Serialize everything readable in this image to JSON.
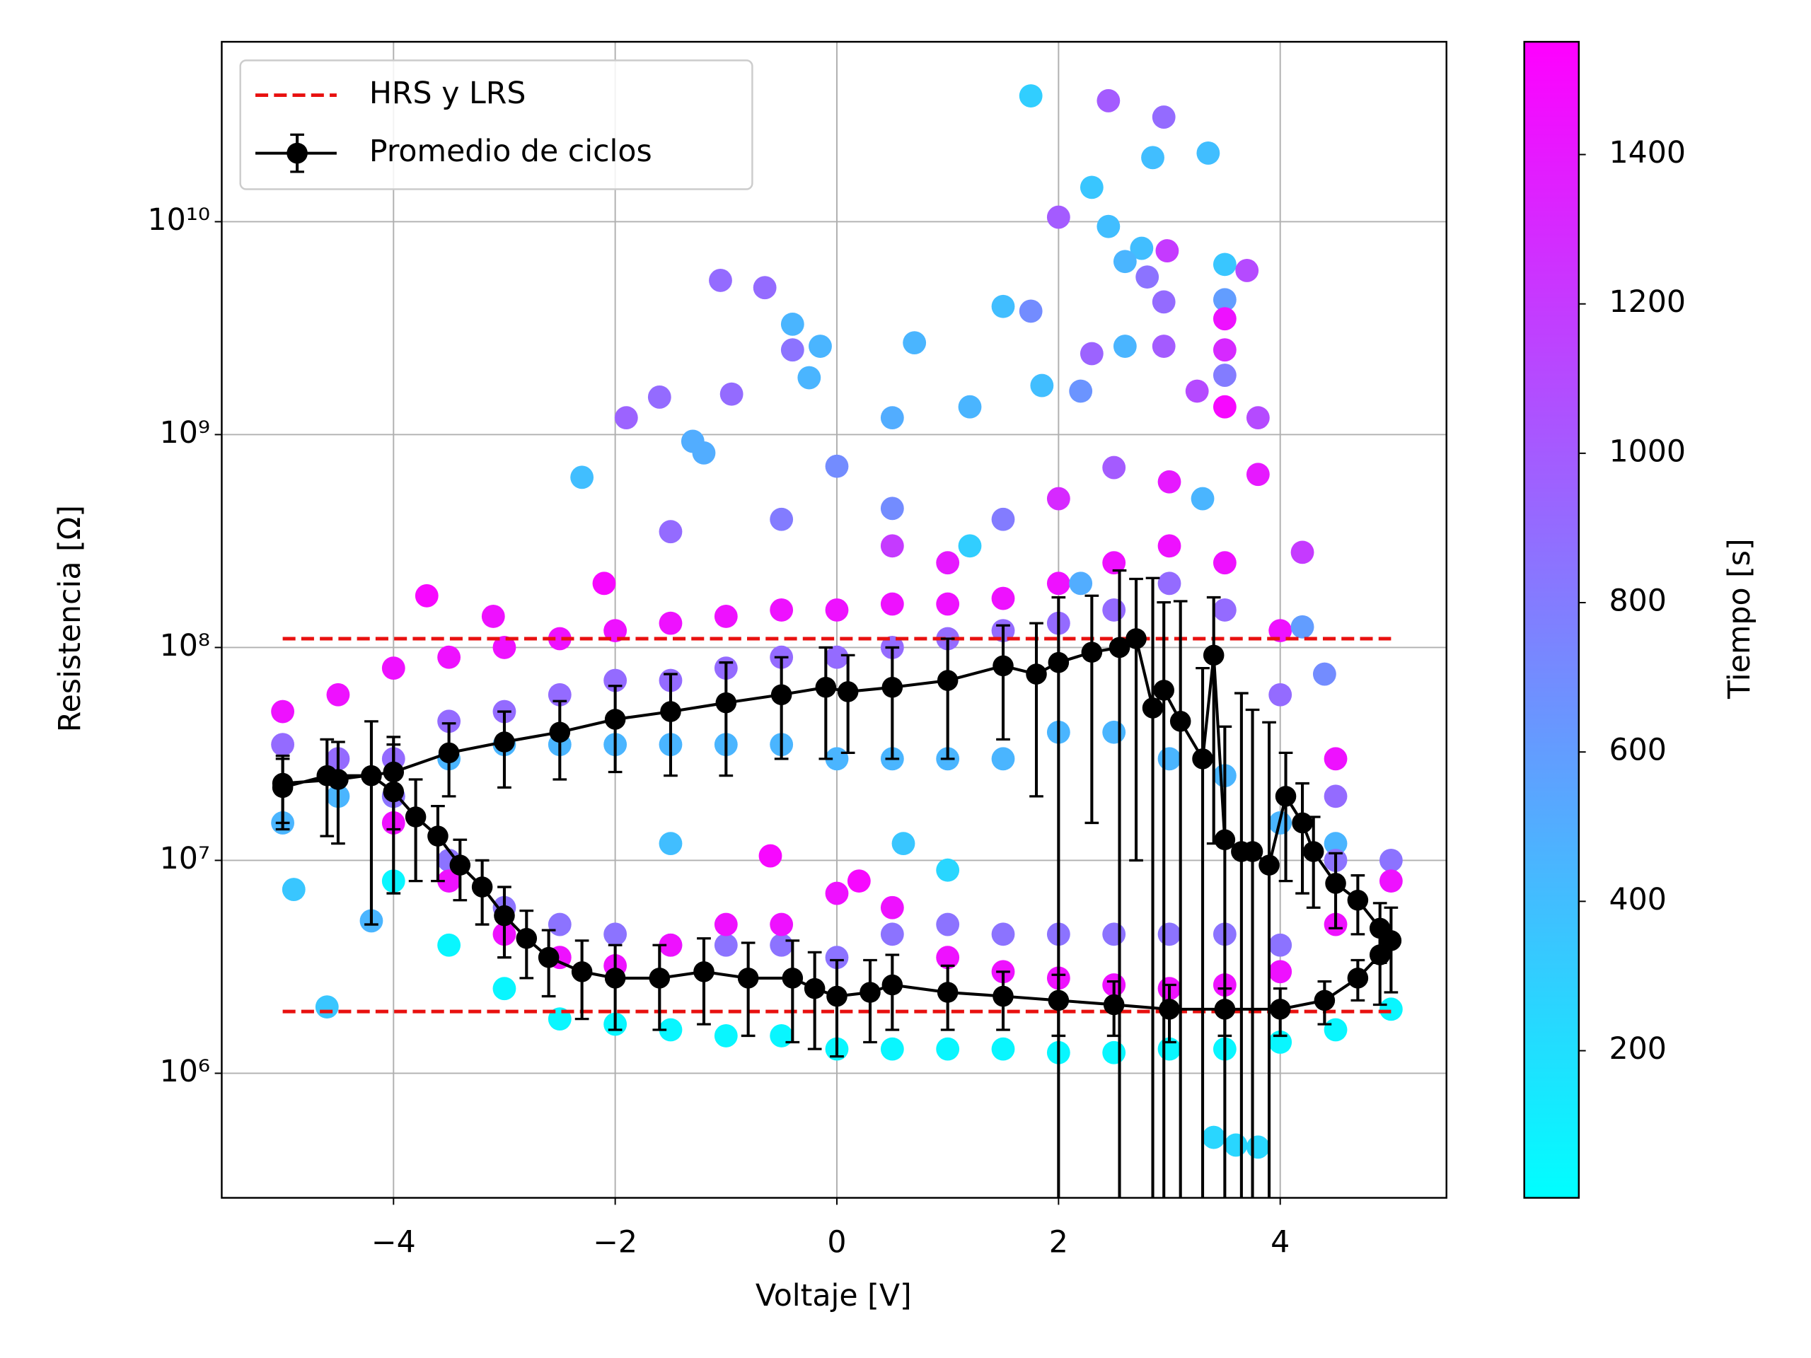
{
  "chart_data": {
    "type": "scatter",
    "x_label": "Voltaje [V]",
    "y_label": "Resistencia [Ω]",
    "colorbar_label": "Tiempo [s]",
    "xlim": [
      -5.55,
      5.5
    ],
    "ylim": [
      260000,
      70000000000
    ],
    "log_y": true,
    "grid": true,
    "legend": "upper left",
    "xticks": [
      {
        "value": -4,
        "label": "−4"
      },
      {
        "value": -2,
        "label": "−2"
      },
      0,
      2,
      4
    ],
    "yticks": [
      {
        "value": 1000000,
        "label": "10⁶"
      },
      {
        "value": 10000000,
        "label": "10⁷"
      },
      {
        "value": 100000000,
        "label": "10⁸"
      },
      {
        "value": 1000000000,
        "label": "10⁹"
      },
      {
        "value": 10000000000,
        "label": "10¹⁰"
      }
    ],
    "clim": [
      3,
      1551
    ],
    "colorbar_ticks": [
      200,
      400,
      600,
      800,
      1000,
      1200,
      1400
    ],
    "scatter": {
      "x": [
        -4,
        -3.5,
        -3,
        -2.5,
        -2,
        -1.5,
        -1,
        -0.5,
        0,
        0.5,
        1,
        1.5,
        2,
        2.5,
        3,
        3.5,
        4,
        4.5,
        5,
        -5,
        -4.5,
        -4,
        -3.5,
        -3,
        -2.5,
        -2,
        -1.5,
        -1,
        -0.5,
        0,
        0.5,
        1,
        1.5,
        2,
        2.5,
        3,
        3.5,
        4,
        4.5,
        -4,
        -3.5,
        -3,
        -2.5,
        -2,
        -1.5,
        -1,
        -0.5,
        0,
        0.5,
        1,
        1.5,
        2,
        2.5,
        3,
        3.5,
        4,
        4.5,
        5,
        -5,
        -4.5,
        -4,
        -3.5,
        -3,
        -2.5,
        -2,
        -1.5,
        -1,
        -0.5,
        0,
        0.5,
        1,
        1.5,
        2,
        2.5,
        3,
        3.5,
        4,
        4.5,
        -4,
        -3.5,
        -3,
        -2.5,
        -2,
        -1.5,
        -1,
        -0.5,
        0,
        0.5,
        1,
        1.5,
        2,
        2.5,
        3,
        3.5,
        4,
        4.5,
        5,
        -5,
        -4.5,
        -4,
        -3.5,
        -3,
        -2.5,
        -2,
        -1.5,
        -1,
        -0.5,
        0,
        0.5,
        1,
        1.5,
        2,
        2.5,
        3,
        3.5,
        4,
        4.5,
        0.5,
        1,
        1.5,
        2,
        2.5,
        3,
        3.3,
        -0.5,
        -1.5,
        0.5,
        1.2,
        2.2,
        3.4,
        3.6,
        3.8,
        -4.6,
        -4.2,
        -4.9,
        0.6,
        -1.5,
        1,
        -0.6,
        0.2,
        -3.7,
        -3.1,
        -2.1,
        1.75,
        2.45,
        2.95,
        2.85,
        3.35,
        2.3,
        2,
        2.45,
        2.75,
        2.98,
        2.6,
        2.8,
        3.5,
        3.7,
        2.95,
        3.5,
        3.5,
        -1.05,
        -0.65,
        -0.4,
        -0.4,
        -0.15,
        -0.25,
        0.7,
        1.5,
        1.75,
        2.6,
        2.3,
        2.95,
        3.5,
        3.5,
        3.5,
        -0.95,
        -1.6,
        -1.9,
        -2.3,
        -1.3,
        -1.2,
        0,
        0.5,
        1.2,
        1.85,
        2.2,
        3.25,
        3.8,
        3.8,
        4.2,
        4.2,
        4.4
      ],
      "values": [
        8000000,
        4000000,
        2500000,
        1800000,
        1700000,
        1600000,
        1500000,
        1500000,
        1300000,
        1300000,
        1300000,
        1300000,
        1250000,
        1250000,
        1300000,
        1300000,
        1400000,
        1600000,
        2000000,
        15000000,
        20000000,
        20000000,
        30000000,
        35000000,
        35000000,
        35000000,
        35000000,
        35000000,
        35000000,
        30000000,
        30000000,
        30000000,
        30000000,
        40000000,
        40000000,
        30000000,
        25000000,
        15000000,
        12000000,
        20000000,
        10000000,
        6000000,
        5000000,
        4500000,
        4000000,
        4000000,
        4000000,
        3500000,
        4500000,
        5000000,
        4500000,
        4500000,
        4500000,
        4500000,
        4500000,
        4000000,
        10000000,
        10000000,
        35000000,
        30000000,
        30000000,
        45000000,
        50000000,
        60000000,
        70000000,
        70000000,
        80000000,
        90000000,
        90000000,
        100000000,
        110000000,
        120000000,
        130000000,
        150000000,
        200000000,
        150000000,
        60000000,
        20000000,
        15000000,
        8000000,
        4500000,
        3500000,
        3200000,
        4000000,
        5000000,
        5000000,
        7000000,
        6000000,
        3500000,
        3000000,
        2800000,
        2600000,
        2500000,
        2600000,
        3000000,
        5000000,
        8000000,
        50000000,
        60000000,
        80000000,
        90000000,
        100000000,
        110000000,
        120000000,
        130000000,
        140000000,
        150000000,
        150000000,
        160000000,
        160000000,
        170000000,
        200000000,
        250000000,
        300000000,
        250000000,
        120000000,
        30000000,
        300000000,
        250000000,
        400000000,
        500000000,
        700000000,
        600000000,
        500000000,
        400000000,
        350000000,
        450000000,
        300000000,
        200000000,
        500000,
        460000,
        450000,
        2050000,
        5200000,
        7300000,
        12000000,
        12000000,
        9000000,
        10500000,
        8000000,
        175000000,
        140000000,
        200000000,
        39000000000,
        37000000000,
        31000000000,
        20000000000,
        21000000000,
        14500000000,
        10500000000,
        9500000000,
        7500000000,
        7300000000,
        6500000000,
        5500000000,
        6300000000,
        5900000000,
        4200000000,
        4300000000,
        3500000000,
        5300000000,
        4900000000,
        3300000000,
        2500000000,
        2600000000,
        1850000000,
        2700000000,
        4000000000,
        3800000000,
        2600000000,
        2400000000,
        2600000000,
        2500000000,
        1900000000,
        1350000000,
        1550000000,
        1500000000,
        1200000000,
        630000000,
        930000000,
        820000000,
        710000000,
        1200000000,
        1350000000,
        1700000000,
        1600000000,
        1600000000,
        1200000000,
        650000000,
        280000000,
        125000000,
        75000000
      ],
      "c": [
        60,
        60,
        60,
        60,
        60,
        60,
        60,
        60,
        60,
        60,
        60,
        60,
        60,
        60,
        60,
        60,
        60,
        60,
        60,
        450,
        450,
        450,
        450,
        450,
        450,
        450,
        450,
        450,
        450,
        450,
        450,
        450,
        450,
        450,
        450,
        450,
        450,
        450,
        450,
        850,
        850,
        850,
        850,
        850,
        850,
        850,
        850,
        850,
        850,
        850,
        850,
        850,
        850,
        850,
        850,
        850,
        850,
        850,
        900,
        900,
        900,
        900,
        900,
        900,
        900,
        900,
        900,
        900,
        900,
        900,
        900,
        900,
        900,
        900,
        900,
        900,
        900,
        900,
        1450,
        1450,
        1450,
        1450,
        1450,
        1450,
        1450,
        1450,
        1450,
        1450,
        1450,
        1450,
        1450,
        1450,
        1450,
        1450,
        1450,
        1450,
        1450,
        1450,
        1450,
        1450,
        1450,
        1450,
        1450,
        1450,
        1450,
        1450,
        1450,
        1450,
        1450,
        1450,
        1450,
        1450,
        1450,
        1450,
        1450,
        1450,
        1450,
        1200,
        1400,
        800,
        1300,
        1000,
        1400,
        450,
        800,
        900,
        700,
        300,
        500,
        250,
        250,
        250,
        350,
        450,
        350,
        350,
        400,
        250,
        1500,
        1500,
        1500,
        1450,
        1500,
        300,
        1000,
        900,
        400,
        400,
        350,
        1000,
        400,
        400,
        1200,
        450,
        850,
        350,
        1100,
        900,
        600,
        1450,
        900,
        900,
        450,
        850,
        450,
        450,
        450,
        400,
        700,
        450,
        950,
        1000,
        1300,
        800,
        1500,
        900,
        900,
        950,
        400,
        500,
        500,
        700,
        500,
        450,
        400,
        650,
        1100,
        1100,
        1400,
        1200,
        600,
        700
      ]
    },
    "hlines": {
      "name": "HRS y LRS",
      "color": "#e8100f",
      "values": [
        110000000,
        1950000
      ],
      "xrange": [
        -5,
        5
      ]
    },
    "average": {
      "name": "Promedio de ciclos",
      "color": "#000000",
      "x": [
        -5,
        -4.6,
        -4.2,
        -4,
        -3.8,
        -3.6,
        -3.4,
        -3.2,
        -3,
        -2.8,
        -2.6,
        -2.3,
        -2,
        -1.6,
        -1.2,
        -0.8,
        -0.4,
        -0.2,
        0,
        0.3,
        0.5,
        1,
        1.5,
        2,
        2.5,
        3,
        3.5,
        4,
        4.4,
        4.7,
        4.9,
        5,
        4.9,
        4.7,
        4.5,
        4.3,
        4.2,
        4.05,
        3.9,
        3.75,
        3.65,
        3.5,
        3.4,
        3.3,
        3.1,
        2.95,
        2.85,
        2.7,
        2.55,
        2.3,
        2,
        1.8,
        1.5,
        1,
        0.5,
        0.1,
        -0.1,
        -0.5,
        -1,
        -1.5,
        -2,
        -2.5,
        -3,
        -3.5,
        -4,
        -4.5,
        -5
      ],
      "values": [
        22000000,
        25000000,
        25000000,
        21000000,
        16000000,
        13000000,
        9500000,
        7500000,
        5500000,
        4300000,
        3500000,
        3000000,
        2800000,
        2800000,
        3000000,
        2800000,
        2800000,
        2500000,
        2300000,
        2400000,
        2600000,
        2400000,
        2300000,
        2200000,
        2100000,
        2000000,
        2000000,
        2000000,
        2200000,
        2800000,
        3600000,
        4200000,
        4800000,
        6500000,
        7800000,
        11000000,
        15000000,
        20000000,
        9500000,
        11000000,
        11000000,
        12500000,
        92000000,
        30000000,
        45000000,
        63000000,
        52000000,
        110000000,
        100000000,
        95000000,
        85000000,
        75000000,
        82000000,
        70000000,
        65000000,
        62000000,
        65000000,
        60000000,
        55000000,
        50000000,
        46000000,
        40000000,
        36000000,
        32000000,
        26000000,
        24000000,
        23000000
      ],
      "errors": [
        8000000,
        12000000,
        20000000,
        14000000,
        8000000,
        5000000,
        3000000,
        2500000,
        2000000,
        1500000,
        1200000,
        1200000,
        1200000,
        1200000,
        1300000,
        1300000,
        1400000,
        1200000,
        1100000,
        1000000,
        1000000,
        800000,
        700000,
        700000,
        600000,
        600000,
        500000,
        500000,
        500000,
        600000,
        1500000,
        1800000,
        1500000,
        2000000,
        3000000,
        5000000,
        8000000,
        12000000,
        35000000,
        40000000,
        50000000,
        30000000,
        80000000,
        50000000,
        120000000,
        100000000,
        160000000,
        100000000,
        130000000,
        80000000,
        87000000,
        55000000,
        45000000,
        40000000,
        35000000,
        30000000,
        35000000,
        30000000,
        30000000,
        25000000,
        20000000,
        16000000,
        14000000,
        12000000,
        12000000,
        12000000,
        8000000
      ]
    }
  }
}
